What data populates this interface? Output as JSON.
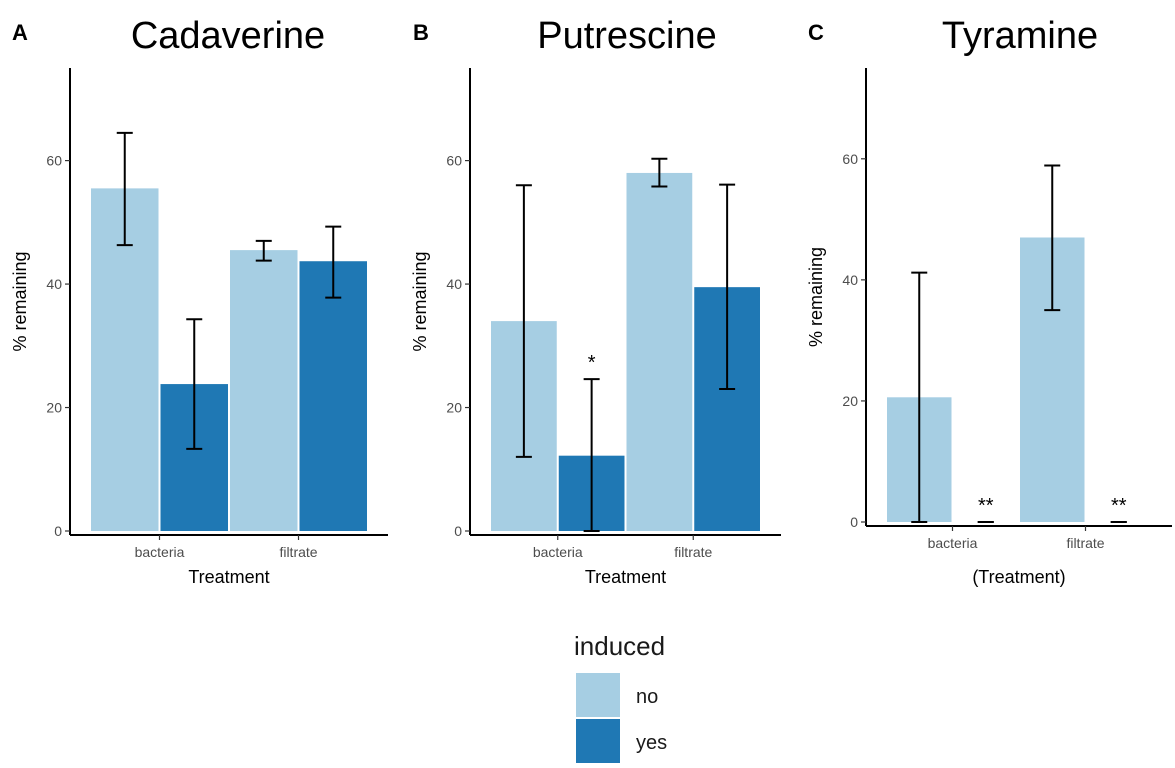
{
  "colors": {
    "no": "#a6cee3",
    "yes": "#1f78b4"
  },
  "legend": {
    "title": "induced",
    "items": [
      {
        "key": "no",
        "label": "no",
        "color": "#a6cee3"
      },
      {
        "key": "yes",
        "label": "yes",
        "color": "#1f78b4"
      }
    ]
  },
  "chart_data": [
    {
      "type": "bar",
      "panel": "A",
      "title": "Cadaverine",
      "xlabel": "Treatment",
      "ylabel": "% remaining",
      "ylim": [
        0,
        75
      ],
      "yticks": [
        0,
        20,
        40,
        60
      ],
      "categories": [
        "bacteria",
        "filtrate"
      ],
      "series": [
        {
          "name": "no",
          "values": [
            55.5,
            45.5
          ],
          "err_low": [
            46.3,
            43.8
          ],
          "err_high": [
            64.5,
            47.0
          ],
          "sig": [
            "",
            ""
          ]
        },
        {
          "name": "yes",
          "values": [
            23.8,
            43.7
          ],
          "err_low": [
            13.3,
            37.8
          ],
          "err_high": [
            34.3,
            49.3
          ],
          "sig": [
            "",
            ""
          ]
        }
      ]
    },
    {
      "type": "bar",
      "panel": "B",
      "title": "Putrescine",
      "xlabel": "Treatment",
      "ylabel": "% remaining",
      "ylim": [
        0,
        75
      ],
      "yticks": [
        0,
        20,
        40,
        60
      ],
      "categories": [
        "bacteria",
        "filtrate"
      ],
      "series": [
        {
          "name": "no",
          "values": [
            34.0,
            58.0
          ],
          "err_low": [
            12.0,
            55.8
          ],
          "err_high": [
            56.0,
            60.3
          ],
          "sig": [
            "",
            ""
          ]
        },
        {
          "name": "yes",
          "values": [
            12.2,
            39.5
          ],
          "err_low": [
            0.0,
            23.0
          ],
          "err_high": [
            24.6,
            56.1
          ],
          "sig": [
            "*",
            ""
          ]
        }
      ]
    },
    {
      "type": "bar",
      "panel": "C",
      "title": "Tyramine",
      "xlabel": "(Treatment)",
      "ylabel": "% remaining",
      "ylim": [
        0,
        75
      ],
      "yticks": [
        0,
        20,
        40,
        60
      ],
      "categories": [
        "bacteria",
        "filtrate"
      ],
      "series": [
        {
          "name": "no",
          "values": [
            20.6,
            47.0
          ],
          "err_low": [
            0.0,
            35.0
          ],
          "err_high": [
            41.2,
            58.9
          ],
          "sig": [
            "",
            ""
          ]
        },
        {
          "name": "yes",
          "values": [
            0.0,
            0.0
          ],
          "err_low": [
            0.0,
            0.0
          ],
          "err_high": [
            0.0,
            0.0
          ],
          "sig": [
            "**",
            "**"
          ]
        }
      ]
    }
  ]
}
